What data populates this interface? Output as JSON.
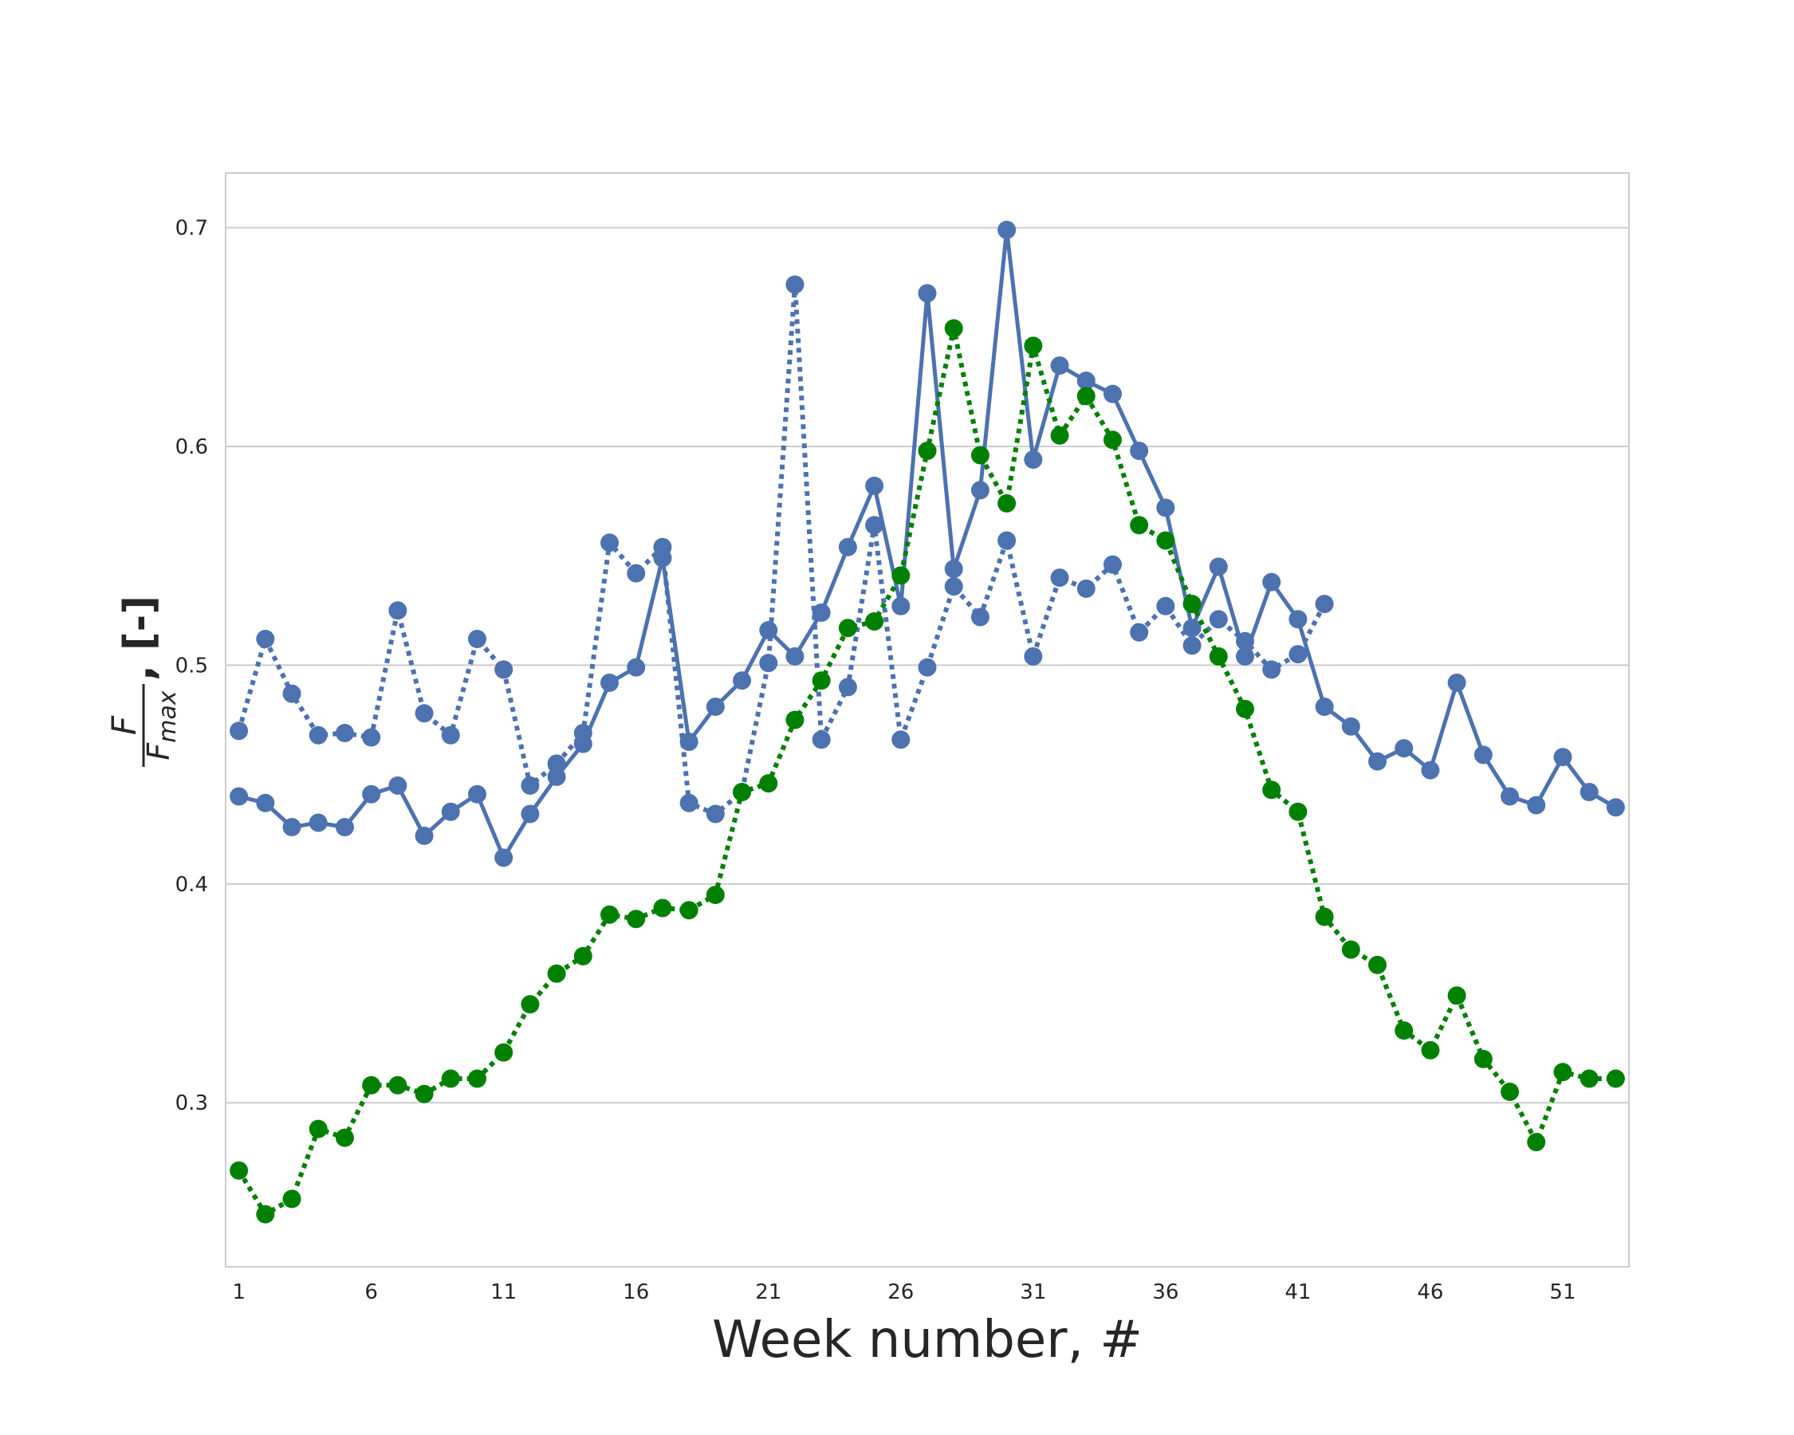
{
  "chart_data": {
    "type": "line",
    "xlabel": "Week number, #",
    "ylabel": {
      "numerator": "F",
      "denominator_base": "F",
      "denominator_sub": "max",
      "unit": ", [-]"
    },
    "xlim": [
      -0.5,
      52.5
    ],
    "ylim": [
      0.225,
      0.725
    ],
    "x_ticks": [
      1,
      6,
      11,
      16,
      21,
      26,
      31,
      36,
      41,
      46,
      51
    ],
    "y_ticks": [
      0.3,
      0.4,
      0.5,
      0.6,
      0.7
    ],
    "y_tick_labels": [
      "0.3",
      "0.4",
      "0.5",
      "0.6",
      "0.7"
    ],
    "grid": "horizontal",
    "series": [
      {
        "style": "solid",
        "color": "#4c72b0",
        "x_start": 0,
        "values": [
          0.44,
          0.437,
          0.426,
          0.428,
          0.426,
          0.441,
          0.445,
          0.422,
          0.433,
          0.441,
          0.412,
          0.432,
          0.449,
          0.464,
          0.492,
          0.499,
          0.549,
          0.465,
          0.481,
          0.493,
          0.516,
          0.504,
          0.524,
          0.554,
          0.582,
          0.527,
          0.67,
          0.544,
          0.58,
          0.699,
          0.594,
          0.637,
          0.63,
          0.624,
          0.598,
          0.572,
          0.517,
          0.545,
          0.504,
          0.538,
          0.521,
          0.481,
          0.472,
          0.456,
          0.462,
          0.452,
          0.492,
          0.459,
          0.44,
          0.436,
          0.458,
          0.442,
          0.435
        ]
      },
      {
        "style": "dotted",
        "color": "#4c72b0",
        "x_start": 0,
        "values": [
          0.47,
          0.512,
          0.487,
          0.468,
          0.469,
          0.467,
          0.525,
          0.478,
          0.468,
          0.512,
          0.498,
          0.445,
          0.455,
          0.469,
          0.556,
          0.542,
          0.554,
          0.437,
          0.432,
          0.442,
          0.501,
          0.674,
          0.466,
          0.49,
          0.564,
          0.466,
          0.499,
          0.536,
          0.522,
          0.557,
          0.504,
          0.54,
          0.535,
          0.546,
          0.515,
          0.527,
          0.509,
          0.521,
          0.511,
          0.498,
          0.505,
          0.528
        ]
      },
      {
        "style": "dotted",
        "color": "#008000",
        "x_start": 0,
        "values": [
          0.269,
          0.249,
          0.256,
          0.288,
          0.284,
          0.308,
          0.308,
          0.304,
          0.311,
          0.311,
          0.323,
          0.345,
          0.359,
          0.367,
          0.386,
          0.384,
          0.389,
          0.388,
          0.395,
          0.442,
          0.446,
          0.475,
          0.493,
          0.517,
          0.52,
          0.541,
          0.598,
          0.654,
          0.596,
          0.574,
          0.646,
          0.605,
          0.623,
          0.603,
          0.564,
          0.557,
          0.528,
          0.504,
          0.48,
          0.443,
          0.433,
          0.385,
          0.37,
          0.363,
          0.333,
          0.324,
          0.349,
          0.32,
          0.305,
          0.282,
          0.314,
          0.311,
          0.311
        ]
      }
    ]
  }
}
